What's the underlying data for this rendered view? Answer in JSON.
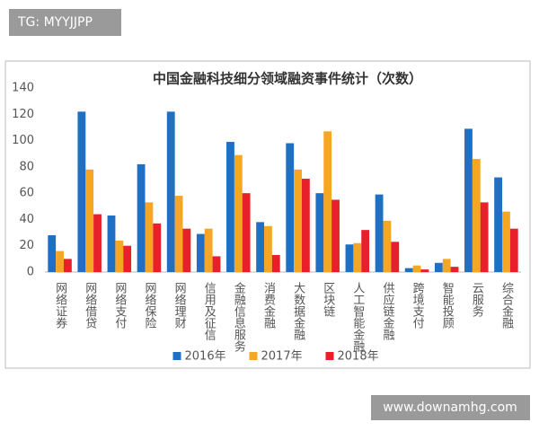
{
  "watermarks": [
    "TG: MYYJJPP",
    "www.downamhg.com"
  ],
  "chart_data": {
    "type": "bar",
    "title": "中国金融科技细分领域融资事件统计（次数）",
    "categories": [
      "网络证券",
      "网络借贷",
      "网络支付",
      "网络保险",
      "网络理财",
      "信用及征信",
      "金融信息服务",
      "消费金融",
      "大数据金融",
      "区块链",
      "人工智能金融",
      "供应链金融",
      "跨境支付",
      "智能投顾",
      "云服务",
      "综合金融"
    ],
    "series": [
      {
        "name": "2016年",
        "color": "#1f6fc5",
        "values": [
          28,
          122,
          43,
          82,
          122,
          29,
          99,
          38,
          98,
          60,
          21,
          59,
          3,
          7,
          109,
          72
        ]
      },
      {
        "name": "2017年",
        "color": "#f5a623",
        "values": [
          16,
          78,
          24,
          53,
          58,
          33,
          89,
          35,
          78,
          107,
          22,
          39,
          5,
          10,
          86,
          46
        ]
      },
      {
        "name": "2018年",
        "color": "#e8202a",
        "values": [
          10,
          44,
          20,
          37,
          33,
          12,
          60,
          13,
          71,
          55,
          32,
          23,
          2,
          4,
          53,
          33
        ]
      }
    ],
    "ylim": [
      0,
      140
    ],
    "yticks": [
      0,
      20,
      40,
      60,
      80,
      100,
      120,
      140
    ],
    "grid": false,
    "legend": "bottom"
  }
}
